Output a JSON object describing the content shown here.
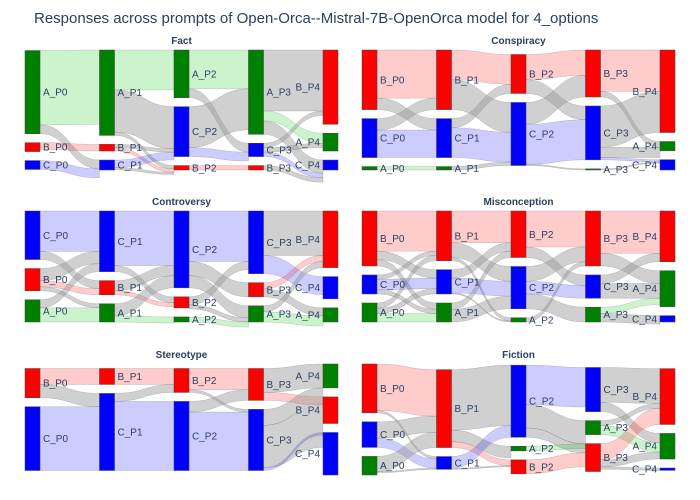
{
  "title": "Responses across prompts of Open-Orca--Mistral-7B-OpenOrca model for 4_options",
  "colors": {
    "A": "#008000",
    "B": "#ff0000",
    "C": "#0000ff"
  },
  "chart_data": [
    {
      "type": "sankey",
      "title": "Fact",
      "columns": [
        [
          {
            "id": "A_P0",
            "v": 75
          },
          {
            "id": "B_P0",
            "v": 8
          },
          {
            "id": "C_P0",
            "v": 8
          }
        ],
        [
          {
            "id": "A_P1",
            "v": 77
          },
          {
            "id": "B_P1",
            "v": 6
          },
          {
            "id": "C_P1",
            "v": 9
          }
        ],
        [
          {
            "id": "A_P2",
            "v": 43
          },
          {
            "id": "C_P2",
            "v": 45
          },
          {
            "id": "B_P2",
            "v": 4
          }
        ],
        [
          {
            "id": "A_P3",
            "v": 76
          },
          {
            "id": "C_P3",
            "v": 12
          },
          {
            "id": "B_P3",
            "v": 4
          }
        ],
        [
          {
            "id": "B_P4",
            "v": 67
          },
          {
            "id": "A_P4",
            "v": 16
          },
          {
            "id": "C_P4",
            "v": 9
          }
        ]
      ],
      "links": [
        [
          [
            0,
            0,
            0,
            67
          ],
          [
            0,
            2,
            0,
            8
          ],
          [
            1,
            1,
            1,
            6
          ],
          [
            2,
            2,
            1,
            8
          ]
        ],
        [
          [
            0,
            0,
            0,
            36
          ],
          [
            0,
            1,
            2,
            38
          ],
          [
            0,
            2,
            2,
            3
          ],
          [
            1,
            1,
            1,
            3
          ],
          [
            1,
            2,
            1,
            3
          ],
          [
            2,
            1,
            2,
            7
          ],
          [
            2,
            2,
            2,
            2
          ]
        ],
        [
          [
            0,
            0,
            0,
            35
          ],
          [
            0,
            1,
            0,
            8
          ],
          [
            1,
            0,
            2,
            37
          ],
          [
            1,
            1,
            1,
            8
          ],
          [
            2,
            2,
            0,
            4
          ]
        ],
        [
          [
            0,
            0,
            0,
            55
          ],
          [
            0,
            1,
            2,
            9
          ],
          [
            0,
            2,
            1,
            12
          ],
          [
            1,
            0,
            2,
            4
          ],
          [
            1,
            1,
            1,
            4
          ],
          [
            1,
            2,
            0,
            4
          ],
          [
            2,
            2,
            0,
            4
          ]
        ]
      ]
    },
    {
      "type": "sankey",
      "title": "Conspiracy",
      "columns": [
        [
          {
            "id": "B_P0",
            "v": 52
          },
          {
            "id": "C_P0",
            "v": 34
          },
          {
            "id": "A_P0",
            "v": 3
          }
        ],
        [
          {
            "id": "B_P1",
            "v": 52
          },
          {
            "id": "C_P1",
            "v": 34
          },
          {
            "id": "A_P1",
            "v": 3
          }
        ],
        [
          {
            "id": "B_P2",
            "v": 34
          },
          {
            "id": "C_P2",
            "v": 55
          }
        ],
        [
          {
            "id": "B_P3",
            "v": 41
          },
          {
            "id": "C_P3",
            "v": 47
          },
          {
            "id": "A_P3",
            "v": 1
          }
        ],
        [
          {
            "id": "B_P4",
            "v": 72
          },
          {
            "id": "A_P4",
            "v": 8
          },
          {
            "id": "C_P4",
            "v": 9
          }
        ]
      ],
      "links": [
        [
          [
            0,
            0,
            0,
            42
          ],
          [
            0,
            1,
            1,
            10
          ],
          [
            1,
            0,
            0,
            10
          ],
          [
            1,
            1,
            1,
            24
          ],
          [
            2,
            2,
            2,
            3
          ]
        ],
        [
          [
            0,
            0,
            0,
            26
          ],
          [
            0,
            1,
            1,
            26
          ],
          [
            1,
            0,
            0,
            8
          ],
          [
            1,
            1,
            1,
            26
          ],
          [
            2,
            1,
            1,
            3
          ]
        ],
        [
          [
            0,
            0,
            0,
            22
          ],
          [
            0,
            1,
            1,
            12
          ],
          [
            1,
            0,
            0,
            19
          ],
          [
            1,
            1,
            1,
            35
          ],
          [
            1,
            2,
            2,
            1
          ]
        ],
        [
          [
            0,
            0,
            0,
            36
          ],
          [
            0,
            1,
            1,
            5
          ],
          [
            1,
            0,
            0,
            36
          ],
          [
            1,
            1,
            2,
            9
          ],
          [
            1,
            2,
            1,
            2
          ],
          [
            2,
            2,
            1,
            1
          ]
        ]
      ]
    },
    {
      "type": "sankey",
      "title": "Controversy",
      "columns": [
        [
          {
            "id": "C_P0",
            "v": 48
          },
          {
            "id": "B_P0",
            "v": 22
          },
          {
            "id": "A_P0",
            "v": 22
          }
        ],
        [
          {
            "id": "C_P1",
            "v": 60
          },
          {
            "id": "B_P1",
            "v": 14
          },
          {
            "id": "A_P1",
            "v": 18
          }
        ],
        [
          {
            "id": "C_P2",
            "v": 76
          },
          {
            "id": "B_P2",
            "v": 11
          },
          {
            "id": "A_P2",
            "v": 5
          }
        ],
        [
          {
            "id": "C_P3",
            "v": 62
          },
          {
            "id": "B_P3",
            "v": 14
          },
          {
            "id": "A_P3",
            "v": 16
          }
        ],
        [
          {
            "id": "B_P4",
            "v": 56
          },
          {
            "id": "C_P4",
            "v": 22
          },
          {
            "id": "A_P4",
            "v": 14
          }
        ]
      ],
      "links": [
        [
          [
            0,
            0,
            0,
            40
          ],
          [
            0,
            1,
            1,
            8
          ],
          [
            1,
            0,
            0,
            12
          ],
          [
            1,
            1,
            1,
            6
          ],
          [
            1,
            2,
            2,
            4
          ],
          [
            2,
            0,
            0,
            8
          ],
          [
            2,
            2,
            2,
            14
          ]
        ],
        [
          [
            0,
            0,
            0,
            54
          ],
          [
            0,
            1,
            1,
            6
          ],
          [
            1,
            0,
            0,
            10
          ],
          [
            1,
            1,
            1,
            4
          ],
          [
            2,
            0,
            0,
            12
          ],
          [
            2,
            2,
            2,
            6
          ]
        ],
        [
          [
            0,
            0,
            0,
            50
          ],
          [
            0,
            1,
            1,
            14
          ],
          [
            0,
            2,
            2,
            12
          ],
          [
            1,
            0,
            0,
            8
          ],
          [
            1,
            2,
            2,
            4
          ],
          [
            2,
            2,
            2,
            5
          ]
        ],
        [
          [
            0,
            0,
            0,
            44
          ],
          [
            0,
            1,
            1,
            18
          ],
          [
            1,
            0,
            0,
            6
          ],
          [
            1,
            2,
            2,
            8
          ],
          [
            2,
            0,
            0,
            6
          ],
          [
            2,
            2,
            2,
            10
          ]
        ]
      ]
    },
    {
      "type": "sankey",
      "title": "Misconception",
      "columns": [
        [
          {
            "id": "B_P0",
            "v": 52
          },
          {
            "id": "C_P0",
            "v": 18
          },
          {
            "id": "A_P0",
            "v": 18
          }
        ],
        [
          {
            "id": "B_P1",
            "v": 47
          },
          {
            "id": "C_P1",
            "v": 23
          },
          {
            "id": "A_P1",
            "v": 18
          }
        ],
        [
          {
            "id": "B_P2",
            "v": 44
          },
          {
            "id": "C_P2",
            "v": 40
          },
          {
            "id": "A_P2",
            "v": 4
          }
        ],
        [
          {
            "id": "B_P3",
            "v": 52
          },
          {
            "id": "C_P3",
            "v": 22
          },
          {
            "id": "A_P3",
            "v": 14
          }
        ],
        [
          {
            "id": "B_P4",
            "v": 48
          },
          {
            "id": "A_P4",
            "v": 34
          },
          {
            "id": "C_P4",
            "v": 6
          }
        ]
      ],
      "links": [
        [
          [
            0,
            0,
            0,
            38
          ],
          [
            0,
            1,
            1,
            8
          ],
          [
            0,
            2,
            2,
            6
          ],
          [
            1,
            0,
            0,
            4
          ],
          [
            1,
            1,
            1,
            10
          ],
          [
            1,
            2,
            2,
            4
          ],
          [
            2,
            0,
            0,
            5
          ],
          [
            2,
            1,
            1,
            5
          ],
          [
            2,
            2,
            2,
            8
          ]
        ],
        [
          [
            0,
            0,
            0,
            30
          ],
          [
            0,
            1,
            1,
            14
          ],
          [
            0,
            2,
            2,
            3
          ],
          [
            1,
            0,
            0,
            8
          ],
          [
            1,
            1,
            1,
            14
          ],
          [
            1,
            2,
            2,
            1
          ],
          [
            2,
            0,
            0,
            6
          ],
          [
            2,
            1,
            1,
            12
          ]
        ],
        [
          [
            0,
            0,
            0,
            34
          ],
          [
            0,
            1,
            1,
            10
          ],
          [
            1,
            0,
            0,
            14
          ],
          [
            1,
            1,
            1,
            12
          ],
          [
            1,
            2,
            2,
            14
          ],
          [
            2,
            0,
            0,
            4
          ]
        ],
        [
          [
            0,
            0,
            0,
            40
          ],
          [
            0,
            1,
            1,
            12
          ],
          [
            1,
            0,
            0,
            8
          ],
          [
            1,
            1,
            1,
            14
          ],
          [
            2,
            1,
            2,
            6
          ],
          [
            2,
            2,
            1,
            8
          ]
        ]
      ]
    },
    {
      "type": "sankey",
      "title": "Stereotype",
      "columns": [
        [
          {
            "id": "B_P0",
            "v": 22
          },
          {
            "id": "C_P0",
            "v": 48
          }
        ],
        [
          {
            "id": "B_P1",
            "v": 12
          },
          {
            "id": "C_P1",
            "v": 58
          }
        ],
        [
          {
            "id": "B_P2",
            "v": 18
          },
          {
            "id": "C_P2",
            "v": 52
          }
        ],
        [
          {
            "id": "B_P3",
            "v": 24
          },
          {
            "id": "C_P3",
            "v": 46
          }
        ],
        [
          {
            "id": "A_P4",
            "v": 18
          },
          {
            "id": "B_P4",
            "v": 20
          },
          {
            "id": "C_P4",
            "v": 32
          }
        ]
      ],
      "links": [
        [
          [
            0,
            0,
            0,
            12
          ],
          [
            0,
            1,
            1,
            10
          ],
          [
            1,
            1,
            1,
            48
          ]
        ],
        [
          [
            0,
            0,
            0,
            12
          ],
          [
            1,
            0,
            0,
            6
          ],
          [
            1,
            1,
            1,
            52
          ]
        ],
        [
          [
            0,
            0,
            0,
            16
          ],
          [
            0,
            1,
            1,
            2
          ],
          [
            1,
            0,
            0,
            8
          ],
          [
            1,
            1,
            1,
            44
          ]
        ],
        [
          [
            0,
            0,
            1,
            18
          ],
          [
            0,
            1,
            0,
            6
          ],
          [
            1,
            0,
            0,
            12
          ],
          [
            1,
            1,
            2,
            32
          ],
          [
            1,
            2,
            1,
            2
          ]
        ]
      ]
    },
    {
      "type": "sankey",
      "title": "Fiction",
      "columns": [
        [
          {
            "id": "B_P0",
            "v": 42
          },
          {
            "id": "C_P0",
            "v": 22
          },
          {
            "id": "A_P0",
            "v": 16
          }
        ],
        [
          {
            "id": "B_P1",
            "v": 67
          },
          {
            "id": "C_P1",
            "v": 11
          }
        ],
        [
          {
            "id": "C_P2",
            "v": 62
          },
          {
            "id": "A_P2",
            "v": 4
          },
          {
            "id": "B_P2",
            "v": 12
          }
        ],
        [
          {
            "id": "C_P3",
            "v": 38
          },
          {
            "id": "A_P3",
            "v": 12
          },
          {
            "id": "B_P3",
            "v": 24
          }
        ],
        [
          {
            "id": "B_P4",
            "v": 48
          },
          {
            "id": "A_P4",
            "v": 22
          },
          {
            "id": "C_P4",
            "v": 2
          }
        ]
      ],
      "links": [
        [
          [
            0,
            0,
            0,
            40
          ],
          [
            0,
            1,
            1,
            2
          ],
          [
            1,
            0,
            0,
            14
          ],
          [
            1,
            1,
            1,
            8
          ],
          [
            2,
            0,
            0,
            13
          ],
          [
            2,
            1,
            1,
            1
          ]
        ],
        [
          [
            0,
            0,
            0,
            52
          ],
          [
            0,
            1,
            2,
            10
          ],
          [
            0,
            2,
            1,
            5
          ],
          [
            1,
            0,
            0,
            10
          ],
          [
            1,
            2,
            2,
            1
          ]
        ],
        [
          [
            0,
            0,
            0,
            34
          ],
          [
            0,
            1,
            2,
            20
          ],
          [
            0,
            2,
            1,
            8
          ],
          [
            1,
            1,
            1,
            4
          ],
          [
            2,
            2,
            2,
            12
          ]
        ],
        [
          [
            0,
            0,
            0,
            30
          ],
          [
            0,
            1,
            1,
            8
          ],
          [
            1,
            0,
            0,
            4
          ],
          [
            1,
            1,
            1,
            8
          ],
          [
            2,
            0,
            0,
            14
          ],
          [
            2,
            1,
            1,
            6
          ],
          [
            2,
            2,
            2,
            2
          ]
        ]
      ]
    }
  ]
}
